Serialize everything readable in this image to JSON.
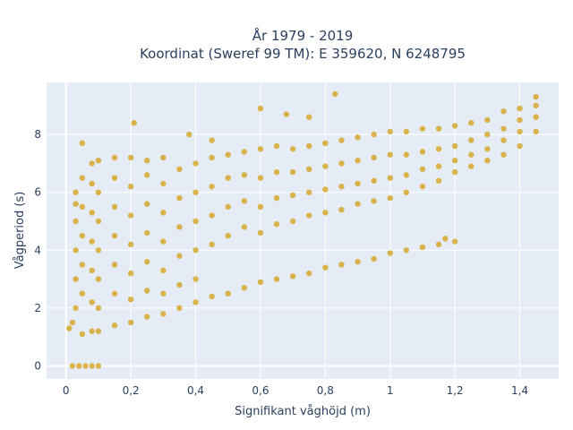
{
  "chart_data": {
    "type": "scatter",
    "title_line1": "År 1979 - 2019",
    "title_line2": "Koordinat (Sweref 99 TM): E 359620, N 6248795",
    "xlabel": "Signifikant våghöjd (m)",
    "ylabel": "Vågperiod (s)",
    "xlim": [
      -0.06,
      1.52
    ],
    "ylim": [
      -0.45,
      9.8
    ],
    "x_ticks": [
      0,
      0.2,
      0.4,
      0.6,
      0.8,
      1.0,
      1.2,
      1.4
    ],
    "x_tick_labels": [
      "0",
      "0,2",
      "0,4",
      "0,6",
      "0,8",
      "1",
      "1,2",
      "1,4"
    ],
    "y_ticks": [
      0,
      2,
      4,
      6,
      8
    ],
    "y_tick_labels": [
      "0",
      "2",
      "4",
      "6",
      "8"
    ],
    "grid": true,
    "marker_color": "#d4a41f",
    "background_color": "#e5ecf6",
    "grid_color": "#ffffff",
    "series": [
      {
        "points": [
          [
            0.02,
            0
          ],
          [
            0.04,
            0
          ],
          [
            0.06,
            0
          ],
          [
            0.08,
            0
          ],
          [
            0.1,
            0
          ],
          [
            0.01,
            1.3
          ],
          [
            0.02,
            1.5
          ],
          [
            0.03,
            2.0
          ],
          [
            0.03,
            3.0
          ],
          [
            0.03,
            4.0
          ],
          [
            0.03,
            5.0
          ],
          [
            0.03,
            5.6
          ],
          [
            0.03,
            6.0
          ],
          [
            0.05,
            1.1
          ],
          [
            0.05,
            2.5
          ],
          [
            0.05,
            3.5
          ],
          [
            0.05,
            4.5
          ],
          [
            0.05,
            5.5
          ],
          [
            0.05,
            6.5
          ],
          [
            0.05,
            7.7
          ],
          [
            0.08,
            1.2
          ],
          [
            0.08,
            2.2
          ],
          [
            0.08,
            3.3
          ],
          [
            0.08,
            4.3
          ],
          [
            0.08,
            5.3
          ],
          [
            0.08,
            6.3
          ],
          [
            0.08,
            7.0
          ],
          [
            0.1,
            1.2
          ],
          [
            0.1,
            2.0
          ],
          [
            0.1,
            3.0
          ],
          [
            0.1,
            4.0
          ],
          [
            0.1,
            5.0
          ],
          [
            0.1,
            6.0
          ],
          [
            0.1,
            7.1
          ],
          [
            0.15,
            1.4
          ],
          [
            0.15,
            2.5
          ],
          [
            0.15,
            3.5
          ],
          [
            0.15,
            4.5
          ],
          [
            0.15,
            5.5
          ],
          [
            0.15,
            6.5
          ],
          [
            0.15,
            7.2
          ],
          [
            0.2,
            1.5
          ],
          [
            0.2,
            2.3
          ],
          [
            0.2,
            3.2
          ],
          [
            0.2,
            4.2
          ],
          [
            0.2,
            5.2
          ],
          [
            0.2,
            6.2
          ],
          [
            0.2,
            7.2
          ],
          [
            0.21,
            8.4
          ],
          [
            0.25,
            1.7
          ],
          [
            0.25,
            2.6
          ],
          [
            0.25,
            3.6
          ],
          [
            0.25,
            4.6
          ],
          [
            0.25,
            5.6
          ],
          [
            0.25,
            6.6
          ],
          [
            0.25,
            7.1
          ],
          [
            0.3,
            1.8
          ],
          [
            0.3,
            2.5
          ],
          [
            0.3,
            3.3
          ],
          [
            0.3,
            4.3
          ],
          [
            0.3,
            5.3
          ],
          [
            0.3,
            6.3
          ],
          [
            0.3,
            7.2
          ],
          [
            0.35,
            2.0
          ],
          [
            0.35,
            2.8
          ],
          [
            0.35,
            3.8
          ],
          [
            0.35,
            4.8
          ],
          [
            0.35,
            5.8
          ],
          [
            0.35,
            6.8
          ],
          [
            0.38,
            8.0
          ],
          [
            0.4,
            2.2
          ],
          [
            0.4,
            3.0
          ],
          [
            0.4,
            4.0
          ],
          [
            0.4,
            5.0
          ],
          [
            0.4,
            6.0
          ],
          [
            0.4,
            7.0
          ],
          [
            0.45,
            2.4
          ],
          [
            0.45,
            4.2
          ],
          [
            0.45,
            5.2
          ],
          [
            0.45,
            6.2
          ],
          [
            0.45,
            7.2
          ],
          [
            0.45,
            7.8
          ],
          [
            0.5,
            2.5
          ],
          [
            0.5,
            4.5
          ],
          [
            0.5,
            5.5
          ],
          [
            0.5,
            6.5
          ],
          [
            0.5,
            7.3
          ],
          [
            0.55,
            2.7
          ],
          [
            0.55,
            4.8
          ],
          [
            0.55,
            5.7
          ],
          [
            0.55,
            6.6
          ],
          [
            0.55,
            7.4
          ],
          [
            0.6,
            2.9
          ],
          [
            0.6,
            4.6
          ],
          [
            0.6,
            5.5
          ],
          [
            0.6,
            6.5
          ],
          [
            0.6,
            7.5
          ],
          [
            0.6,
            8.9
          ],
          [
            0.65,
            3.0
          ],
          [
            0.65,
            4.9
          ],
          [
            0.65,
            5.8
          ],
          [
            0.65,
            6.7
          ],
          [
            0.65,
            7.6
          ],
          [
            0.7,
            3.1
          ],
          [
            0.7,
            5.0
          ],
          [
            0.7,
            5.9
          ],
          [
            0.7,
            6.7
          ],
          [
            0.7,
            7.5
          ],
          [
            0.68,
            8.7
          ],
          [
            0.75,
            3.2
          ],
          [
            0.75,
            5.2
          ],
          [
            0.75,
            6.0
          ],
          [
            0.75,
            6.8
          ],
          [
            0.75,
            7.6
          ],
          [
            0.8,
            3.4
          ],
          [
            0.8,
            5.3
          ],
          [
            0.8,
            6.1
          ],
          [
            0.8,
            6.9
          ],
          [
            0.8,
            7.7
          ],
          [
            0.75,
            8.6
          ],
          [
            0.83,
            9.4
          ],
          [
            0.85,
            3.5
          ],
          [
            0.85,
            5.4
          ],
          [
            0.85,
            6.2
          ],
          [
            0.85,
            7.0
          ],
          [
            0.85,
            7.8
          ],
          [
            0.9,
            3.6
          ],
          [
            0.9,
            5.6
          ],
          [
            0.9,
            6.3
          ],
          [
            0.9,
            7.1
          ],
          [
            0.9,
            7.9
          ],
          [
            0.95,
            3.7
          ],
          [
            0.95,
            5.7
          ],
          [
            0.95,
            6.4
          ],
          [
            0.95,
            7.2
          ],
          [
            0.95,
            8.0
          ],
          [
            1.0,
            3.9
          ],
          [
            1.0,
            5.8
          ],
          [
            1.0,
            6.5
          ],
          [
            1.0,
            7.3
          ],
          [
            1.0,
            8.1
          ],
          [
            1.05,
            4.0
          ],
          [
            1.05,
            6.0
          ],
          [
            1.05,
            6.6
          ],
          [
            1.05,
            7.3
          ],
          [
            1.05,
            8.1
          ],
          [
            1.1,
            4.1
          ],
          [
            1.1,
            6.2
          ],
          [
            1.1,
            6.8
          ],
          [
            1.1,
            7.4
          ],
          [
            1.1,
            8.2
          ],
          [
            1.15,
            4.2
          ],
          [
            1.15,
            6.4
          ],
          [
            1.15,
            6.9
          ],
          [
            1.15,
            7.5
          ],
          [
            1.15,
            8.2
          ],
          [
            1.2,
            4.3
          ],
          [
            1.2,
            6.7
          ],
          [
            1.2,
            7.1
          ],
          [
            1.2,
            7.6
          ],
          [
            1.2,
            8.3
          ],
          [
            1.17,
            4.4
          ],
          [
            1.25,
            6.9
          ],
          [
            1.25,
            7.3
          ],
          [
            1.25,
            7.8
          ],
          [
            1.25,
            8.4
          ],
          [
            1.3,
            7.1
          ],
          [
            1.3,
            7.5
          ],
          [
            1.3,
            8.0
          ],
          [
            1.3,
            8.5
          ],
          [
            1.35,
            7.3
          ],
          [
            1.35,
            7.8
          ],
          [
            1.35,
            8.2
          ],
          [
            1.35,
            8.8
          ],
          [
            1.4,
            7.6
          ],
          [
            1.4,
            8.1
          ],
          [
            1.4,
            8.5
          ],
          [
            1.4,
            8.9
          ],
          [
            1.45,
            8.1
          ],
          [
            1.45,
            8.6
          ],
          [
            1.45,
            9.0
          ],
          [
            1.45,
            9.3
          ]
        ]
      }
    ]
  }
}
